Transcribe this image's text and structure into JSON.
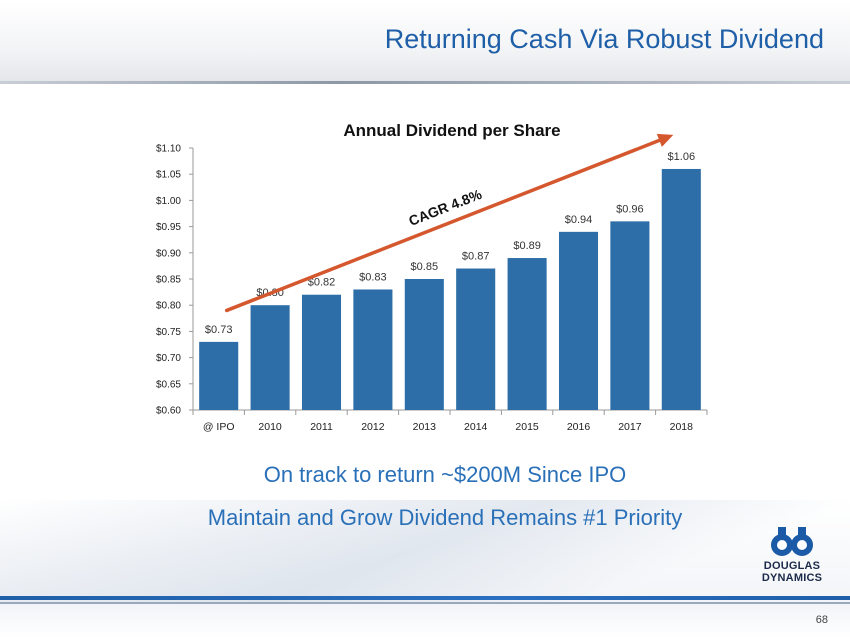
{
  "slide": {
    "title": "Returning Cash Via Robust Dividend",
    "page_number": "68",
    "subtext_lines": [
      "On track to return ~$200M Since IPO",
      "Maintain and Grow Dividend Remains #1 Priority"
    ],
    "logo": {
      "name": "douglas-dynamics-logo-icon",
      "text_lines": [
        "DOUGLAS",
        "DYNAMICS"
      ]
    }
  },
  "chart_data": {
    "type": "bar",
    "title": "Annual Dividend per Share",
    "categories": [
      "@ IPO",
      "2010",
      "2011",
      "2012",
      "2013",
      "2014",
      "2015",
      "2016",
      "2017",
      "2018"
    ],
    "values": [
      0.73,
      0.8,
      0.82,
      0.83,
      0.85,
      0.87,
      0.89,
      0.94,
      0.96,
      1.06
    ],
    "data_labels": [
      "$0.73",
      "$0.80",
      "$0.82",
      "$0.83",
      "$0.85",
      "$0.87",
      "$0.89",
      "$0.94",
      "$0.96",
      "$1.06"
    ],
    "ylim": [
      0.6,
      1.1
    ],
    "yticks": [
      0.6,
      0.65,
      0.7,
      0.75,
      0.8,
      0.85,
      0.9,
      0.95,
      1.0,
      1.05,
      1.1
    ],
    "ytick_labels": [
      "$0.60",
      "$0.65",
      "$0.70",
      "$0.75",
      "$0.80",
      "$0.85",
      "$0.90",
      "$0.95",
      "$1.00",
      "$1.05",
      "$1.10"
    ],
    "xlabel": "",
    "ylabel": "",
    "grid": false,
    "annotation": {
      "text": "CAGR  4.8%",
      "type": "trend-arrow",
      "from_category": "@ IPO",
      "from_value": 0.79,
      "to_category": "2018",
      "to_value": 1.125
    },
    "colors": {
      "bar": "#2e6ea8",
      "arrow": "#d4572e"
    }
  }
}
